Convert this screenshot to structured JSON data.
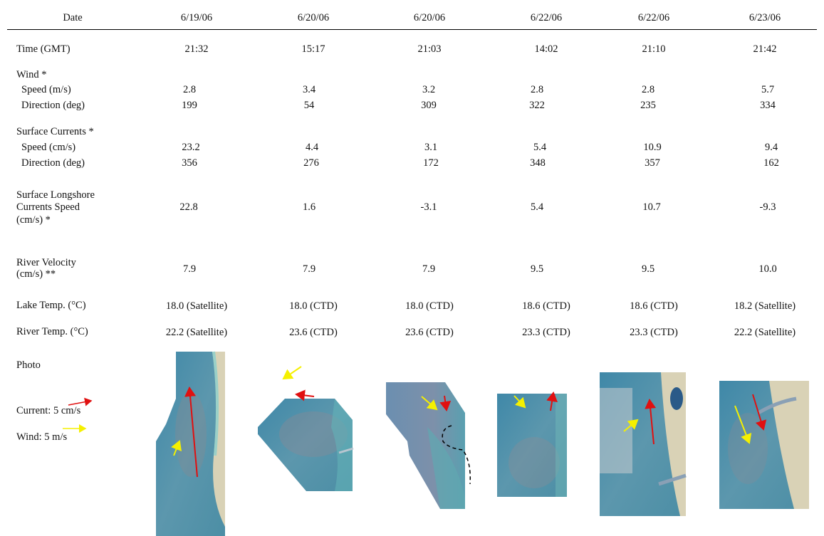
{
  "columns": [
    "6/19/06",
    "6/20/06",
    "6/20/06",
    "6/22/06",
    "6/22/06",
    "6/23/06"
  ],
  "header_label": "Date",
  "rows": {
    "time": {
      "label": "Time (GMT)",
      "values": [
        "21:32",
        "15:17",
        "21:03",
        "14:02",
        "21:10",
        "21:42"
      ]
    },
    "wind": {
      "label": "Wind *",
      "speed_label": "Speed (m/s)",
      "speed": [
        "2.8",
        "3.4",
        "3.2",
        "2.8",
        "2.8",
        "5.7"
      ],
      "direction_label": "Direction (deg)",
      "direction": [
        "199",
        "54",
        "309",
        "322",
        "235",
        "334"
      ]
    },
    "currents": {
      "label": "Surface Currents *",
      "speed_label": "Speed (cm/s)",
      "speed": [
        "23.2",
        "4.4",
        "3.1",
        "5.4",
        "10.9",
        "9.4"
      ],
      "direction_label": "Direction (deg)",
      "direction": [
        "356",
        "276",
        "172",
        "348",
        "357",
        "162"
      ]
    },
    "longshore": {
      "label_lines": [
        "Surface Longshore",
        "Currents Speed",
        "(cm/s) *"
      ],
      "values": [
        "22.8",
        "1.6",
        "-3.1",
        "5.4",
        "10.7",
        "-9.3"
      ]
    },
    "river_velocity": {
      "label_lines": [
        "River Velocity",
        "(cm/s) **"
      ],
      "values": [
        "7.9",
        "7.9",
        "7.9",
        "9.5",
        "9.5",
        "10.0"
      ]
    },
    "lake_temp": {
      "label": "Lake Temp. (°C)",
      "values": [
        "18.0 (Satellite)",
        "18.0 (CTD)",
        "18.0 (CTD)",
        "18.6 (CTD)",
        "18.6 (CTD)",
        "18.2 (Satellite)"
      ]
    },
    "river_temp": {
      "label": "River Temp. (°C)",
      "values": [
        "22.2 (Satellite)",
        "23.6 (CTD)",
        "23.6 (CTD)",
        "23.3 (CTD)",
        "23.3 (CTD)",
        "22.2 (Satellite)"
      ]
    }
  },
  "photo_row": {
    "label": "Photo",
    "legend_current": "Current: 5 cm/s",
    "legend_wind": "Wind: 5 m/s",
    "current_color": "#e01010",
    "wind_color": "#f5f000",
    "water_color": "#4f93ae"
  }
}
